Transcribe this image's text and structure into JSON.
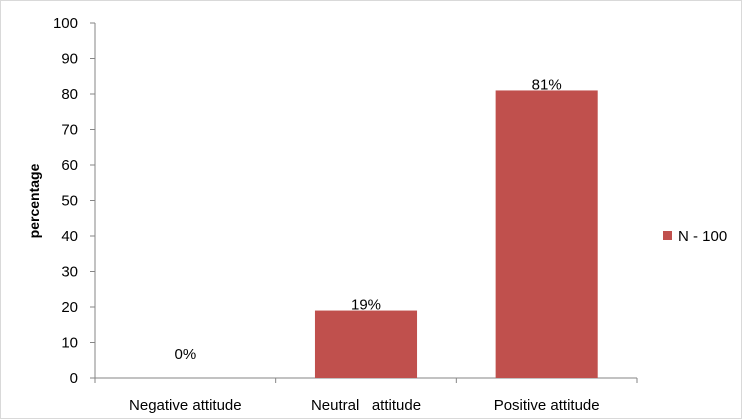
{
  "chart_data": {
    "type": "bar",
    "categories": [
      "Negative attitude",
      "Neutral   attitude",
      "Positive attitude"
    ],
    "series": [
      {
        "name": "N - 100",
        "values": [
          0,
          19,
          81
        ],
        "color": "#c0504d"
      }
    ],
    "data_labels": [
      "0%",
      "19%",
      "81%"
    ],
    "title": "",
    "xlabel": "",
    "ylabel": "percentage",
    "ylim": [
      0,
      100
    ],
    "yticks": [
      0,
      10,
      20,
      30,
      40,
      50,
      60,
      70,
      80,
      90,
      100
    ],
    "grid": false,
    "legend": "right"
  }
}
